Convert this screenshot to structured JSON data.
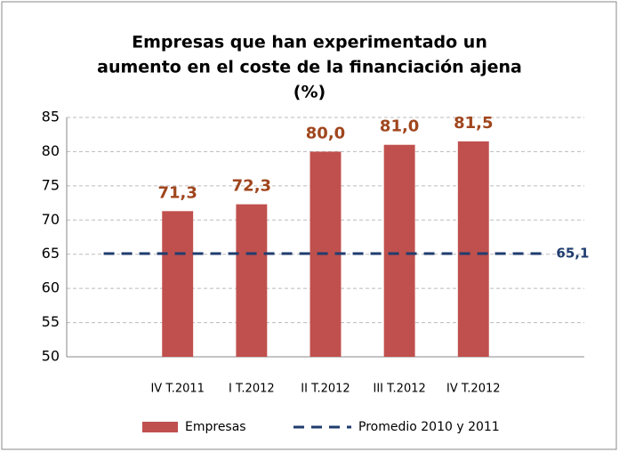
{
  "chart_data": {
    "type": "bar",
    "title": [
      "Empresas que han experimentado un",
      "aumento en el coste de la financiación ajena",
      "(%)"
    ],
    "categories": [
      null,
      "IV T.2011",
      "I T.2012",
      "II T.2012",
      "III T.2012",
      "IV T.2012",
      null
    ],
    "series": [
      {
        "name": "Empresas",
        "type": "bar",
        "color": "#c0504d",
        "values": [
          null,
          71.3,
          72.3,
          80.0,
          81.0,
          81.5,
          null
        ],
        "value_labels": [
          null,
          "71,3",
          "72,3",
          "80,0",
          "81,0",
          "81,5",
          null
        ],
        "label_color": "#a0461e"
      },
      {
        "name": "Promedio 2010 y 2011",
        "type": "line",
        "color": "#1f3c6e",
        "dashed": true,
        "values": [
          65.1,
          65.1,
          65.1,
          65.1,
          65.1,
          65.1,
          65.1
        ],
        "value_labels": [
          null,
          null,
          null,
          null,
          null,
          null,
          "65,1"
        ],
        "label_color": "#1f3c6e"
      }
    ],
    "ylim": [
      50,
      85
    ],
    "yticks": [
      50,
      55,
      60,
      65,
      70,
      75,
      80,
      85
    ],
    "grid": true,
    "legend": "bottom"
  }
}
